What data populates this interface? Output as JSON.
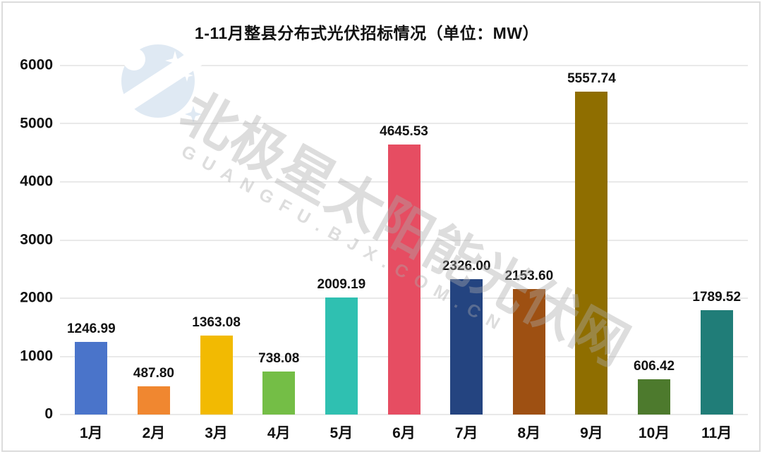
{
  "page": {
    "background": "#ffffff",
    "frame_border_color": "#dcdcdc",
    "gridline_color": "#e9e9e9",
    "text_color": "#111111"
  },
  "chart_data": {
    "type": "bar",
    "title": "1-11月整县分布式光伏招标情况（单位：MW）",
    "xlabel": "",
    "ylabel": "",
    "unit": "MW",
    "categories": [
      "1月",
      "2月",
      "3月",
      "4月",
      "5月",
      "6月",
      "7月",
      "8月",
      "9月",
      "10月",
      "11月"
    ],
    "values": [
      1246.99,
      487.8,
      1363.08,
      738.08,
      2009.19,
      4645.53,
      2326.0,
      2153.6,
      5557.74,
      606.42,
      1789.52
    ],
    "value_labels": [
      "1246.99",
      "487.80",
      "1363.08",
      "738.08",
      "2009.19",
      "4645.53",
      "2326.00",
      "2153.60",
      "5557.74",
      "606.42",
      "1789.52"
    ],
    "bar_colors": [
      "#4A74CA",
      "#F08730",
      "#F2BA02",
      "#74BE46",
      "#2FC0B1",
      "#E64D62",
      "#244480",
      "#9E5012",
      "#8F6E00",
      "#4D7A2D",
      "#207D78"
    ],
    "ylim": [
      0,
      6000
    ],
    "ytick_interval": 1000,
    "yticks": [
      "0",
      "1000",
      "2000",
      "3000",
      "4000",
      "5000",
      "6000"
    ],
    "grid": true,
    "legend_position": "none"
  },
  "watermark": {
    "cn_text": "北极星太阳能光伏网",
    "latin_text": "GUANGFU.BJX.COM.CN",
    "logo_name": "bjx-polaris-logo",
    "logo_color": "#dfe9f3",
    "text_color": "#aaaaaa"
  }
}
